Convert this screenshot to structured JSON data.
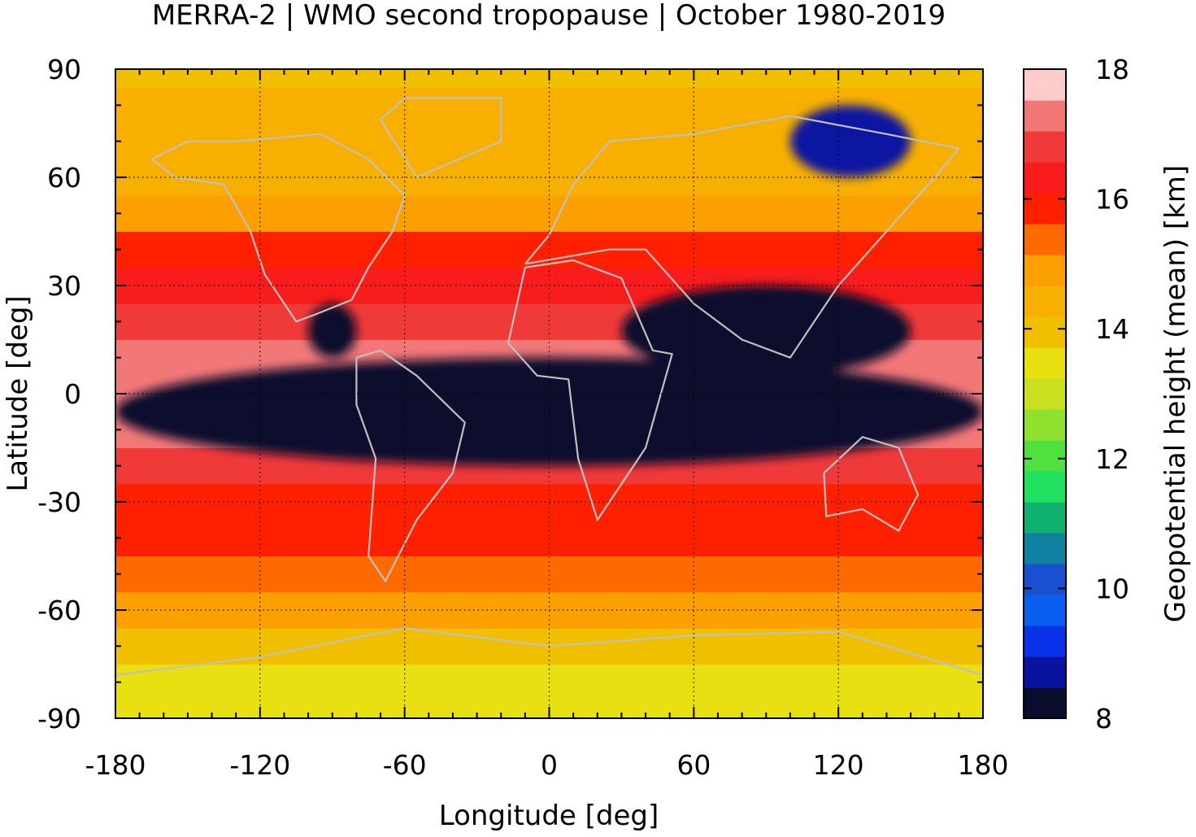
{
  "chart_data": {
    "type": "heatmap",
    "title": "MERRA-2 | WMO second tropopause | October 1980-2019",
    "xlabel": "Longitude [deg]",
    "ylabel": "Latitude [deg]",
    "colorbar_label": "Geopotential height (mean) [km]",
    "xlim": [
      -180,
      180
    ],
    "ylim": [
      -90,
      90
    ],
    "x_ticks": [
      -180,
      -120,
      -60,
      0,
      60,
      120,
      180
    ],
    "x_tick_labels": [
      "-180",
      "-120",
      "-60",
      "0",
      "60",
      "120",
      "180"
    ],
    "y_ticks": [
      90,
      60,
      30,
      0,
      -30,
      -60,
      -90
    ],
    "y_tick_labels": [
      "90",
      "60",
      "30",
      "0",
      "-30",
      "-60",
      "-90"
    ],
    "grid": true,
    "colorbar": {
      "range": [
        8,
        18
      ],
      "ticks": [
        18,
        16,
        14,
        12,
        10,
        8
      ],
      "tick_labels": [
        "18",
        "16",
        "14",
        "12",
        "10",
        "8"
      ],
      "bin_width": 0.5,
      "colors": [
        "#0a0c2e",
        "#0a12a0",
        "#0a32e8",
        "#0a5ef0",
        "#1a4fd0",
        "#1080a0",
        "#10b070",
        "#20e060",
        "#50e040",
        "#90e030",
        "#c8e020",
        "#e8e010",
        "#f0c000",
        "#f8b000",
        "#fba000",
        "#ff6a00",
        "#ff2000",
        "#f81c1c",
        "#f03a3a",
        "#f27878",
        "#ffcccc"
      ]
    },
    "zonal_mean_km": [
      {
        "lat": -90,
        "value": 13.6
      },
      {
        "lat": -80,
        "value": 13.8
      },
      {
        "lat": -70,
        "value": 14.4
      },
      {
        "lat": -60,
        "value": 15.2
      },
      {
        "lat": -50,
        "value": 15.9
      },
      {
        "lat": -40,
        "value": 16.2
      },
      {
        "lat": -30,
        "value": 16.4
      },
      {
        "lat": -20,
        "value": 17.0
      },
      {
        "lat": -10,
        "value": 17.5
      },
      {
        "lat": 0,
        "value": 17.9
      },
      {
        "lat": 10,
        "value": 17.6
      },
      {
        "lat": 20,
        "value": 17.1
      },
      {
        "lat": 30,
        "value": 16.5
      },
      {
        "lat": 40,
        "value": 16.0
      },
      {
        "lat": 50,
        "value": 15.2
      },
      {
        "lat": 60,
        "value": 14.6
      },
      {
        "lat": 70,
        "value": 14.6
      },
      {
        "lat": 80,
        "value": 14.6
      },
      {
        "lat": 90,
        "value": 14.2
      }
    ],
    "low_value_regions": [
      {
        "name": "",
        "lon": [
          -180,
          180
        ],
        "lat": [
          -20,
          10
        ],
        "value": 8.2
      },
      {
        "name": "",
        "lon": [
          30,
          150
        ],
        "lat": [
          5,
          30
        ],
        "value": 8.2
      },
      {
        "name": "",
        "lon": [
          -100,
          -80
        ],
        "lat": [
          10,
          25
        ],
        "value": 8.2
      },
      {
        "name": "",
        "lon": [
          100,
          150
        ],
        "lat": [
          60,
          80
        ],
        "value": 8.5
      }
    ]
  }
}
